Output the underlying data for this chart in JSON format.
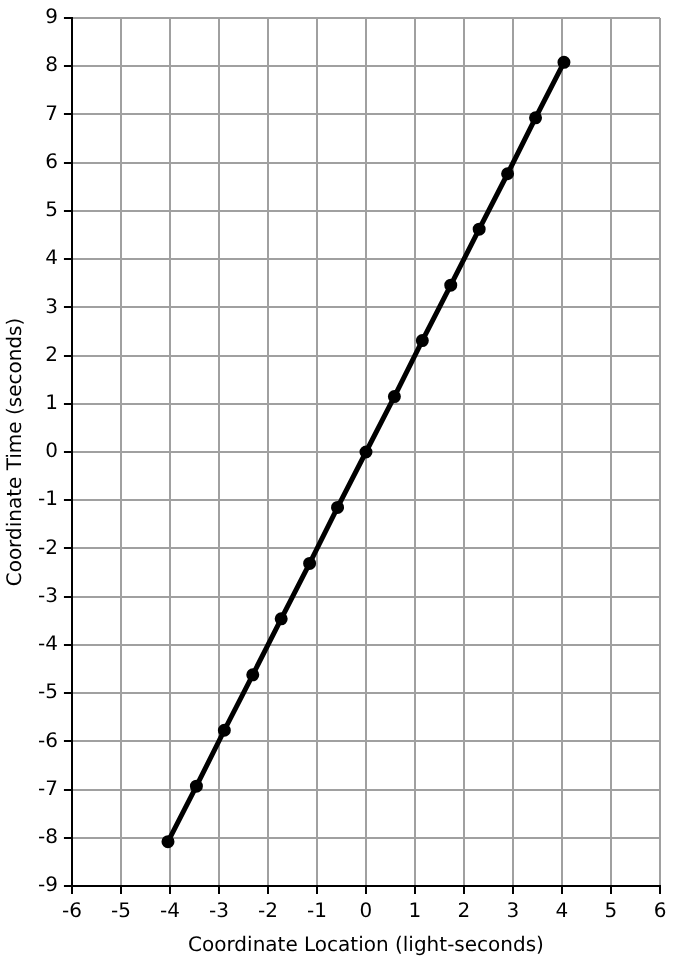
{
  "chart_data": {
    "type": "line",
    "xlabel": "Coordinate Location (light-seconds)",
    "ylabel": "Coordinate Time (seconds)",
    "x": [
      -4.04,
      -3.46,
      -2.89,
      -2.31,
      -1.73,
      -1.15,
      -0.58,
      0,
      0.58,
      1.15,
      1.73,
      2.31,
      2.89,
      3.46,
      4.04
    ],
    "series": [
      {
        "color": "#000000",
        "values": [
          -8.08,
          -6.93,
          -5.77,
          -4.62,
          -3.46,
          -2.31,
          -1.15,
          0,
          1.15,
          2.31,
          3.46,
          4.62,
          5.77,
          6.93,
          8.08
        ]
      }
    ],
    "xlim": [
      -6,
      6
    ],
    "ylim": [
      -9,
      9
    ],
    "xticks": [
      -6,
      -5,
      -4,
      -3,
      -2,
      -1,
      0,
      1,
      2,
      3,
      4,
      5,
      6
    ],
    "yticks": [
      -9,
      -8,
      -7,
      -6,
      -5,
      -4,
      -3,
      -2,
      -1,
      0,
      1,
      2,
      3,
      4,
      5,
      6,
      7,
      8,
      9
    ],
    "grid": true,
    "marker": "circle",
    "line_style": "solid"
  }
}
